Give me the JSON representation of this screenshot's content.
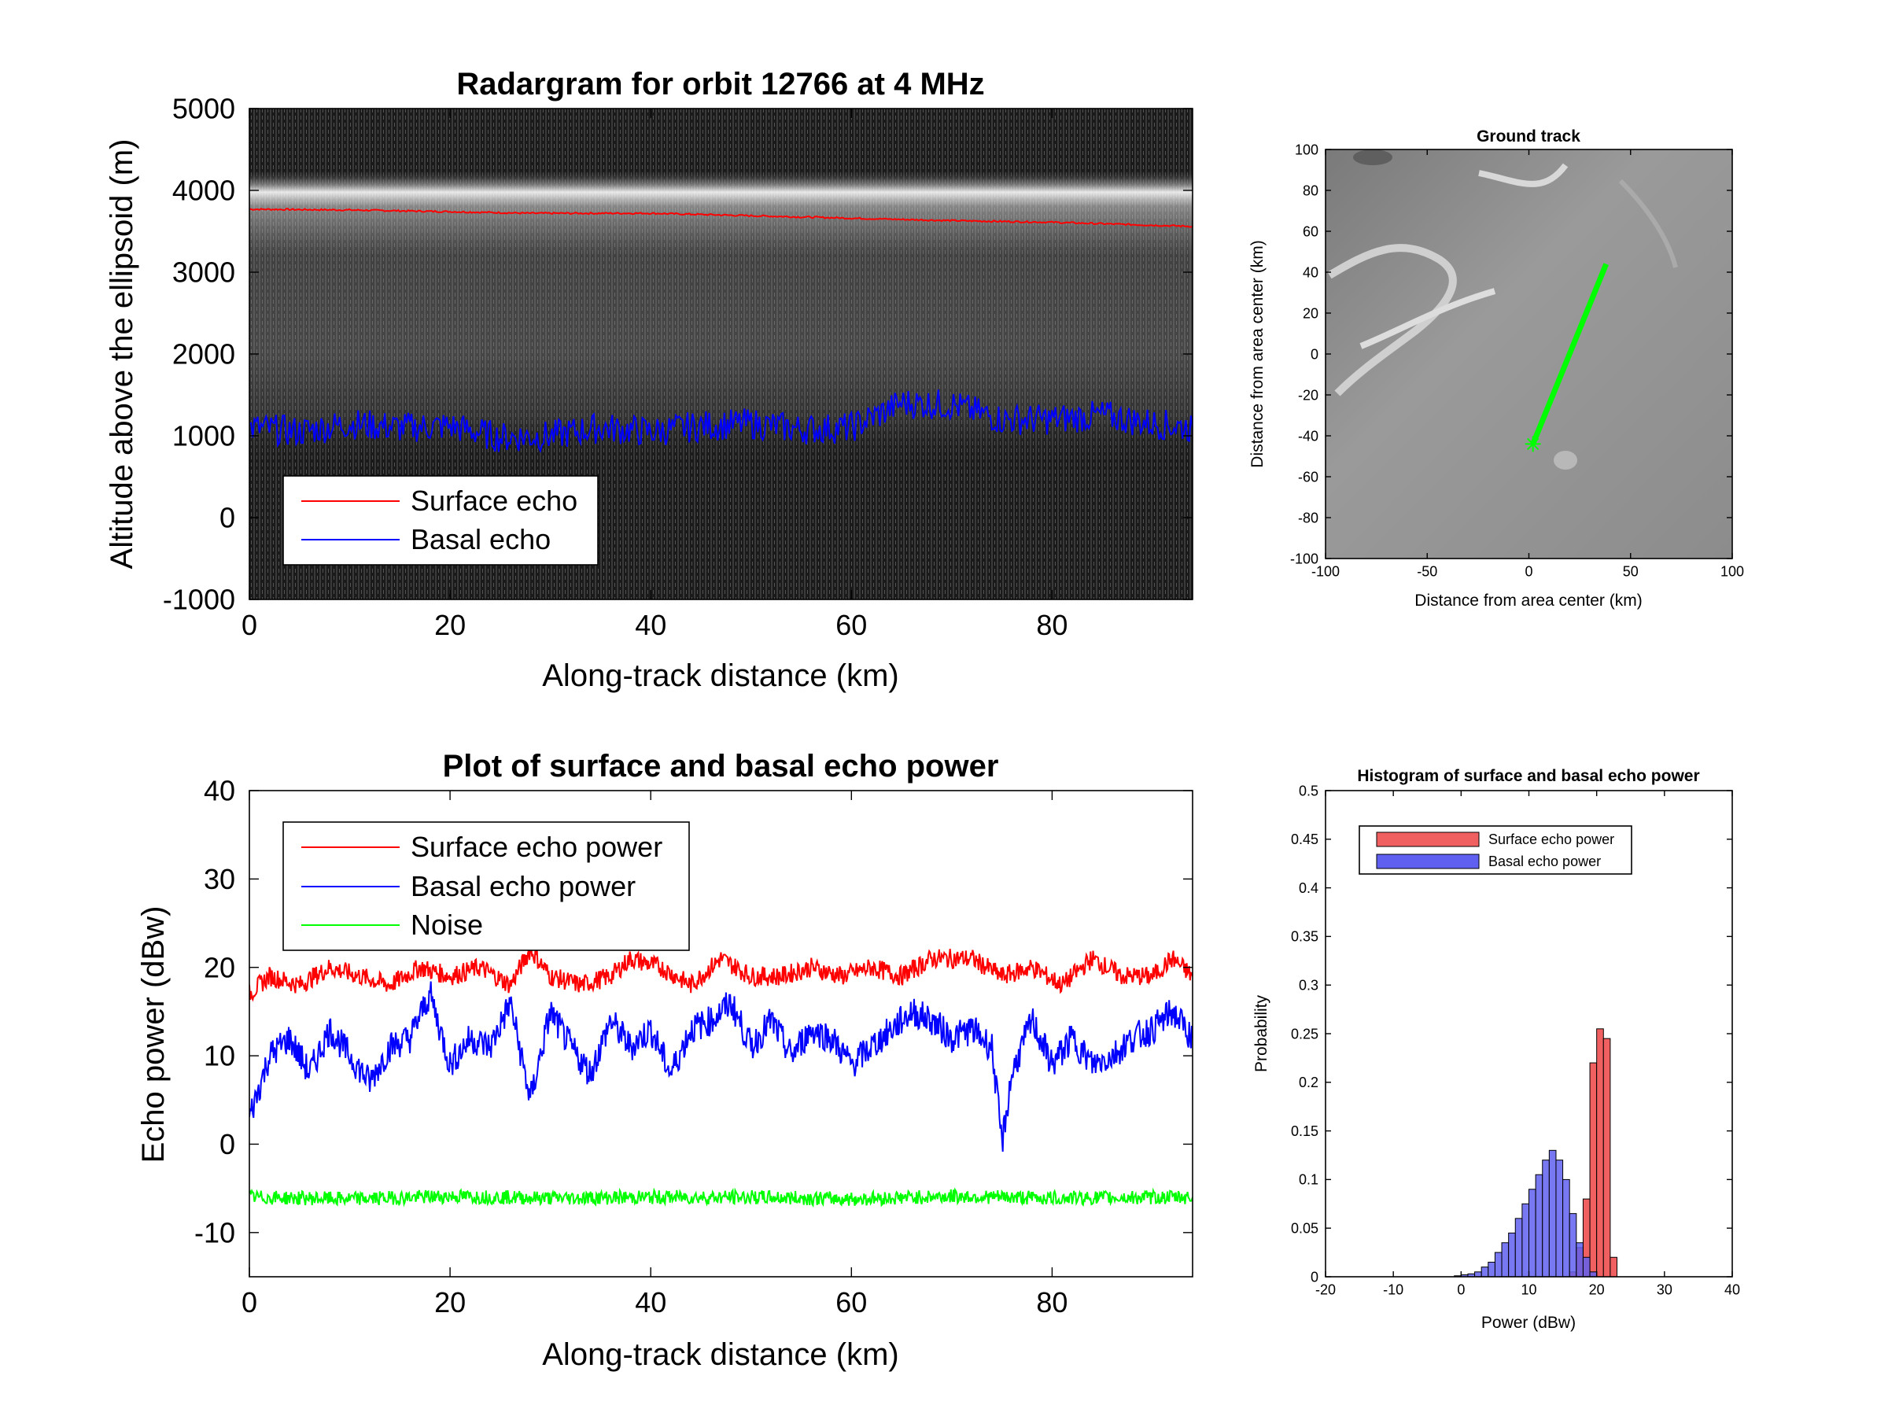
{
  "chart_data": [
    {
      "id": "radargram",
      "type": "line",
      "title": "Radargram for orbit 12766 at 4 MHz",
      "xlabel": "Along-track distance (km)",
      "ylabel": "Altitude above the ellipsoid (m)",
      "xlim": [
        0,
        94
      ],
      "ylim": [
        -1000,
        5000
      ],
      "xticks": [
        0,
        20,
        40,
        60,
        80
      ],
      "yticks": [
        5000,
        4000,
        3000,
        2000,
        1000,
        0,
        -1000
      ],
      "background": "radar image (grayscale)",
      "legend_position": "lower-left",
      "series": [
        {
          "name": "Surface echo",
          "color": "#ff0000",
          "x": [
            0,
            10,
            20,
            28,
            40,
            50,
            60,
            70,
            80,
            94
          ],
          "y": [
            3770,
            3760,
            3740,
            3720,
            3720,
            3690,
            3660,
            3630,
            3610,
            3560
          ]
        },
        {
          "name": "Basal echo",
          "color": "#0000ff",
          "x": [
            0,
            5,
            10,
            15,
            20,
            25,
            30,
            35,
            40,
            45,
            50,
            55,
            60,
            65,
            70,
            75,
            80,
            85,
            90,
            94
          ],
          "y": [
            1100,
            1050,
            1150,
            1100,
            1120,
            980,
            1000,
            1100,
            1050,
            1120,
            1150,
            1080,
            1100,
            1400,
            1380,
            1200,
            1200,
            1250,
            1150,
            1100
          ]
        }
      ]
    },
    {
      "id": "ground-track",
      "type": "line",
      "title": "Ground track",
      "xlabel": "Distance from area center (km)",
      "ylabel": "Distance from area center (km)",
      "xlim": [
        -100,
        100
      ],
      "ylim": [
        -100,
        100
      ],
      "xticks": [
        -100,
        -50,
        0,
        50,
        100
      ],
      "yticks": [
        100,
        80,
        60,
        40,
        20,
        0,
        -20,
        -40,
        -60,
        -80,
        -100
      ],
      "background": "shaded relief image (grayscale)",
      "series": [
        {
          "color": "#00ff00",
          "x": [
            2,
            38
          ],
          "y": [
            -44,
            44
          ]
        }
      ],
      "start_marker": {
        "x": 2,
        "y": -44,
        "symbol": "*"
      }
    },
    {
      "id": "echo-power",
      "type": "line",
      "title": "Plot of surface and basal echo power",
      "xlabel": "Along-track distance (km)",
      "ylabel": "Echo power (dBw)",
      "xlim": [
        0,
        94
      ],
      "ylim": [
        -15,
        40
      ],
      "xticks": [
        0,
        20,
        40,
        60,
        80
      ],
      "yticks": [
        40,
        30,
        20,
        10,
        0,
        -10
      ],
      "legend_position": "top-left",
      "series": [
        {
          "name": "Surface echo power",
          "color": "#ff0000",
          "x": [
            0,
            2,
            5,
            8,
            11,
            14,
            17,
            20,
            23,
            26,
            28,
            30,
            33,
            36,
            38,
            41,
            44,
            47,
            50,
            53,
            56,
            59,
            62,
            65,
            68,
            72,
            75,
            78,
            81,
            84,
            87,
            90,
            92,
            94
          ],
          "y": [
            17,
            19,
            18,
            20,
            19,
            18,
            20,
            19,
            20,
            18,
            22,
            19,
            18,
            19,
            21,
            20,
            18,
            21,
            19,
            19,
            20,
            19,
            20,
            19,
            21,
            21,
            19,
            20,
            18,
            21,
            19,
            19,
            21,
            19
          ]
        },
        {
          "name": "Basal echo power",
          "color": "#0000ff",
          "x": [
            0,
            2,
            4,
            6,
            8,
            10,
            12,
            14,
            16,
            18,
            20,
            22,
            24,
            26,
            28,
            30,
            32,
            34,
            36,
            38,
            40,
            42,
            44,
            46,
            48,
            50,
            52,
            54,
            56,
            58,
            60,
            62,
            64,
            66,
            68,
            70,
            72,
            74,
            75,
            76,
            78,
            80,
            82,
            84,
            86,
            88,
            90,
            92,
            94
          ],
          "y": [
            3,
            10,
            12,
            8,
            13,
            10,
            7,
            11,
            12,
            17,
            9,
            12,
            11,
            16,
            5,
            15,
            11,
            8,
            14,
            11,
            13,
            8,
            13,
            14,
            16,
            11,
            14,
            10,
            13,
            12,
            9,
            11,
            13,
            15,
            14,
            12,
            13,
            11,
            0,
            8,
            14,
            9,
            12,
            9,
            10,
            12,
            13,
            15,
            12
          ]
        },
        {
          "name": "Noise",
          "color": "#00ff00",
          "x": [
            0,
            10,
            20,
            30,
            40,
            50,
            60,
            70,
            80,
            94
          ],
          "y": [
            -6,
            -6.2,
            -5.9,
            -6.1,
            -6,
            -6,
            -6.2,
            -5.9,
            -6.1,
            -6
          ]
        }
      ]
    },
    {
      "id": "histogram",
      "type": "bar",
      "title": "Histogram of surface and basal echo power",
      "xlabel": "Power (dBw)",
      "ylabel": "Probability",
      "xlim": [
        -20,
        40
      ],
      "ylim": [
        0,
        0.5
      ],
      "xticks": [
        -20,
        -10,
        0,
        10,
        20,
        30,
        40
      ],
      "yticks": [
        0.5,
        0.45,
        0.4,
        0.35,
        0.3,
        0.25,
        0.2,
        0.15,
        0.1,
        0.05,
        0
      ],
      "bin_width": 1,
      "legend_position": "top-left",
      "series": [
        {
          "name": "Surface echo power",
          "color": "#f06060",
          "bins": [
            16,
            17,
            18,
            19,
            20,
            21,
            22
          ],
          "values": [
            0.005,
            0.03,
            0.08,
            0.22,
            0.255,
            0.245,
            0.02
          ]
        },
        {
          "name": "Basal echo power",
          "color": "#6060f0",
          "bins": [
            -1,
            0,
            1,
            2,
            3,
            4,
            5,
            6,
            7,
            8,
            9,
            10,
            11,
            12,
            13,
            14,
            15,
            16,
            17,
            18,
            19
          ],
          "values": [
            0.001,
            0.002,
            0.003,
            0.005,
            0.01,
            0.015,
            0.025,
            0.035,
            0.045,
            0.06,
            0.075,
            0.09,
            0.105,
            0.12,
            0.13,
            0.12,
            0.1,
            0.065,
            0.035,
            0.02,
            0.005
          ]
        }
      ]
    }
  ]
}
